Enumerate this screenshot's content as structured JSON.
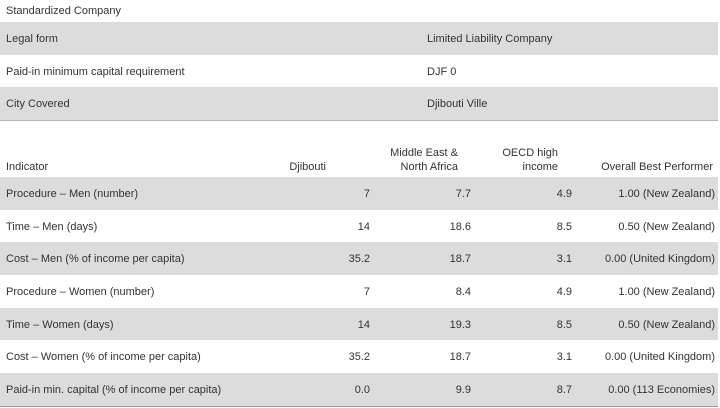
{
  "section_title": "Standardized Company",
  "company_info": [
    {
      "label": "Legal form",
      "value": "Limited Liability Company"
    },
    {
      "label": "Paid-in minimum capital requirement",
      "value": "DJF 0"
    },
    {
      "label": "City Covered",
      "value": "Djibouti Ville"
    }
  ],
  "indicators_table": {
    "headers": [
      "Indicator",
      "Djibouti",
      "Middle East & North Africa",
      "OECD high income",
      "Overall Best Performer"
    ],
    "rows": [
      [
        "Procedure – Men (number)",
        "7",
        "7.7",
        "4.9",
        "1.00 (New Zealand)"
      ],
      [
        "Time – Men (days)",
        "14",
        "18.6",
        "8.5",
        "0.50 (New Zealand)"
      ],
      [
        "Cost – Men (% of income per capita)",
        "35.2",
        "18.7",
        "3.1",
        "0.00 (United Kingdom)"
      ],
      [
        "Procedure – Women (number)",
        "7",
        "8.4",
        "4.9",
        "1.00 (New Zealand)"
      ],
      [
        "Time – Women (days)",
        "14",
        "19.3",
        "8.5",
        "0.50 (New Zealand)"
      ],
      [
        "Cost – Women (% of income per capita)",
        "35.2",
        "18.7",
        "3.1",
        "0.00 (United Kingdom)"
      ],
      [
        "Paid-in min. capital (% of income per capita)",
        "0.0",
        "9.9",
        "8.7",
        "0.00 (113 Economies)"
      ]
    ]
  },
  "colors": {
    "row_shade": "#dcdcdc",
    "text": "#333333"
  }
}
